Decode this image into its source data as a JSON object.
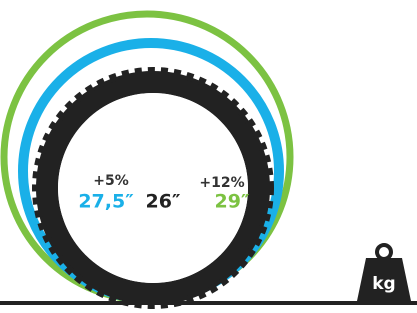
{
  "sizes": [
    {
      "increase": "+5%",
      "label": "27,5″"
    },
    {
      "label": "26″"
    },
    {
      "increase": "+12%",
      "label": "29″"
    }
  ],
  "weight": "kg"
}
